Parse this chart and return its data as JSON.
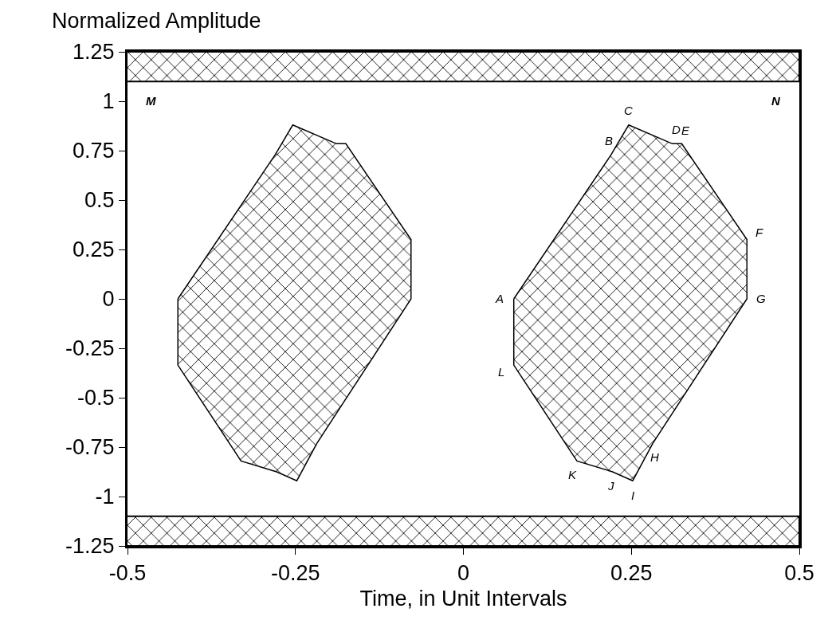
{
  "chart_data": {
    "type": "area",
    "xlabel": "Time, in Unit Intervals",
    "ylabel": "Normalized Amplitude",
    "series": [
      {
        "color": "#000000",
        "x": [
          -0.425,
          -0.28,
          -0.254,
          -0.189,
          -0.175,
          -0.078,
          -0.078,
          -0.218,
          -0.248,
          -0.278,
          -0.331,
          -0.425
        ],
        "values": [
          0,
          0.73,
          0.88,
          0.785,
          0.785,
          0.3,
          0,
          -0.73,
          -0.92,
          -0.875,
          -0.82,
          -0.335
        ]
      },
      {
        "color": "#000000",
        "x": [
          0.075,
          0.22,
          0.246,
          0.311,
          0.325,
          0.422,
          0.422,
          0.282,
          0.252,
          0.222,
          0.169,
          0.075
        ],
        "values": [
          0,
          0.73,
          0.88,
          0.785,
          0.785,
          0.3,
          0,
          -0.73,
          -0.92,
          -0.875,
          -0.82,
          -0.335
        ]
      }
    ],
    "bands": [
      {
        "axis": "y",
        "from": 1.1,
        "to": 1.25,
        "color": "#000000"
      },
      {
        "axis": "y",
        "from": -1.25,
        "to": -1.1,
        "color": "#000000"
      }
    ],
    "annotations": [
      {
        "text": "A",
        "x": 0.075,
        "y": 0
      },
      {
        "text": "B",
        "x": 0.22,
        "y": 0.73
      },
      {
        "text": "C",
        "x": 0.246,
        "y": 0.88
      },
      {
        "text": "D",
        "x": 0.311,
        "y": 0.785
      },
      {
        "text": "E",
        "x": 0.325,
        "y": 0.785
      },
      {
        "text": "F",
        "x": 0.422,
        "y": 0.3
      },
      {
        "text": "G",
        "x": 0.422,
        "y": 0
      },
      {
        "text": "H",
        "x": 0.282,
        "y": -0.73
      },
      {
        "text": "I",
        "x": 0.252,
        "y": -0.92
      },
      {
        "text": "J",
        "x": 0.222,
        "y": -0.875
      },
      {
        "text": "K",
        "x": 0.169,
        "y": -0.82
      },
      {
        "text": "L",
        "x": 0.075,
        "y": -0.335
      },
      "M",
      "N"
    ],
    "xlim": [
      -0.5,
      0.5
    ],
    "xticks": [
      -0.5,
      -0.25,
      0,
      0.25,
      0.5
    ],
    "ylim": [
      -1.25,
      1.25
    ],
    "yticks": [
      -1.25,
      -1,
      -0.75,
      -0.5,
      -0.25,
      0,
      0.25,
      0.5,
      0.75,
      1,
      1.25
    ],
    "grid": false
  }
}
